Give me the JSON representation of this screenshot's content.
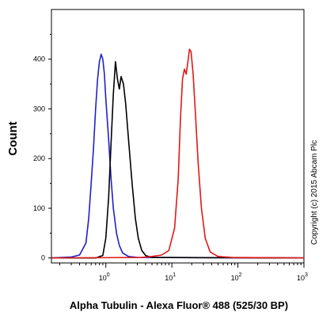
{
  "chart_data": {
    "type": "line",
    "title": "",
    "xlabel": "Alpha Tubulin - Alexa Fluor® 488 (525/30 BP)",
    "ylabel": "Count",
    "x_scale": "log",
    "xlim": [
      0.15,
      1000
    ],
    "ylim": [
      -10,
      500
    ],
    "x_ticks": [
      {
        "value": 1,
        "base": "10",
        "exp": "0"
      },
      {
        "value": 10,
        "base": "10",
        "exp": "1"
      },
      {
        "value": 100,
        "base": "10",
        "exp": "2"
      },
      {
        "value": 1000,
        "base": "10",
        "exp": "3"
      }
    ],
    "y_ticks": [
      0,
      100,
      200,
      300,
      400
    ],
    "grid": false,
    "annotation": "Copyright (c) 2015 Abcam Plc",
    "series": [
      {
        "color": "#2020c8",
        "points": [
          [
            0.15,
            0
          ],
          [
            0.3,
            2
          ],
          [
            0.4,
            6
          ],
          [
            0.5,
            30
          ],
          [
            0.55,
            80
          ],
          [
            0.6,
            150
          ],
          [
            0.65,
            220
          ],
          [
            0.7,
            300
          ],
          [
            0.75,
            360
          ],
          [
            0.8,
            395
          ],
          [
            0.85,
            410
          ],
          [
            0.9,
            400
          ],
          [
            0.95,
            370
          ],
          [
            1.0,
            320
          ],
          [
            1.1,
            240
          ],
          [
            1.2,
            160
          ],
          [
            1.3,
            100
          ],
          [
            1.45,
            50
          ],
          [
            1.6,
            25
          ],
          [
            1.8,
            10
          ],
          [
            2.2,
            3
          ],
          [
            3,
            1
          ],
          [
            1000,
            0
          ]
        ]
      },
      {
        "color": "#000000",
        "points": [
          [
            0.15,
            0
          ],
          [
            0.7,
            0
          ],
          [
            0.9,
            5
          ],
          [
            1.0,
            40
          ],
          [
            1.1,
            120
          ],
          [
            1.2,
            230
          ],
          [
            1.3,
            330
          ],
          [
            1.4,
            395
          ],
          [
            1.5,
            360
          ],
          [
            1.6,
            340
          ],
          [
            1.7,
            365
          ],
          [
            1.85,
            350
          ],
          [
            2.0,
            310
          ],
          [
            2.2,
            240
          ],
          [
            2.5,
            150
          ],
          [
            2.8,
            80
          ],
          [
            3.1,
            40
          ],
          [
            3.5,
            15
          ],
          [
            4.0,
            5
          ],
          [
            5.0,
            1
          ],
          [
            1000,
            0
          ]
        ]
      },
      {
        "color": "#e01818",
        "points": [
          [
            0.15,
            0
          ],
          [
            3.5,
            1
          ],
          [
            5,
            3
          ],
          [
            7,
            6
          ],
          [
            9,
            15
          ],
          [
            11,
            60
          ],
          [
            12.5,
            160
          ],
          [
            13.5,
            280
          ],
          [
            14.5,
            360
          ],
          [
            15.5,
            380
          ],
          [
            16.5,
            370
          ],
          [
            17.5,
            395
          ],
          [
            18.5,
            420
          ],
          [
            19.5,
            415
          ],
          [
            21,
            370
          ],
          [
            23,
            280
          ],
          [
            25,
            190
          ],
          [
            28,
            100
          ],
          [
            32,
            40
          ],
          [
            38,
            12
          ],
          [
            50,
            3
          ],
          [
            80,
            1
          ],
          [
            1000,
            0
          ]
        ]
      }
    ]
  }
}
